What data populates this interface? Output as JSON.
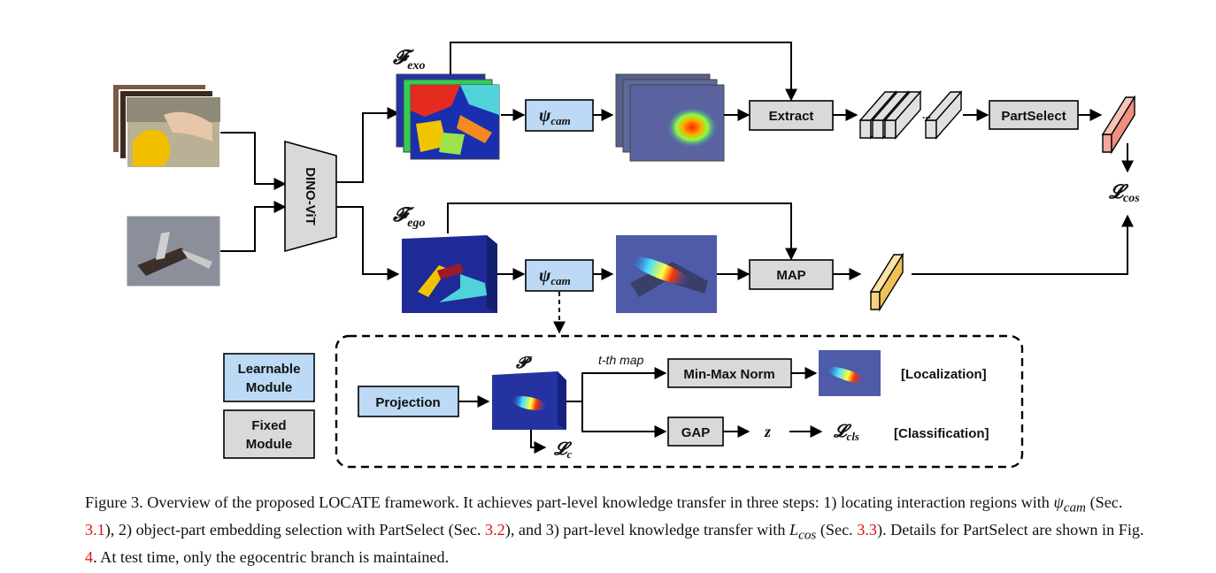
{
  "labels": {
    "dino": "DINO-ViT",
    "f_exo": "𝓕",
    "f_exo_sub": "exo",
    "f_ego": "𝓕",
    "f_ego_sub": "ego",
    "psi_top": "ψ",
    "psi_top_sub": "cam",
    "psi_bottom": "ψ",
    "psi_bottom_sub": "cam",
    "extract": "Extract",
    "partselect": "PartSelect",
    "map": "MAP",
    "dots": "...",
    "l_cos": "𝓛",
    "l_cos_sub": "cos"
  },
  "legend": {
    "learnable_line1": "Learnable",
    "learnable_line2": "Module",
    "fixed_line1": "Fixed",
    "fixed_line2": "Module"
  },
  "detail": {
    "projection": "Projection",
    "p_label": "𝓟",
    "tth_map": "t-th map",
    "minmax": "Min-Max Norm",
    "gap": "GAP",
    "z": "z",
    "l_c": "𝓛",
    "l_c_sub": "c",
    "l_cls": "𝓛",
    "l_cls_sub": "cls",
    "localization": "[Localization]",
    "classification": "[Classification]"
  },
  "caption": {
    "p1": "Figure 3. Overview of the proposed LOCATE framework. It achieves part-level knowledge transfer in three steps: 1) locating interaction regions with ",
    "psi": "ψ",
    "psi_sub": "cam",
    "p2": " (Sec. ",
    "ref1": "3.1",
    "p3": "), 2) object-part embedding selection with PartSelect (Sec. ",
    "ref2": "3.2",
    "p4": "), and 3) part-level knowledge transfer with ",
    "lcos": "L",
    "lcos_sub": "cos",
    "p5": " (Sec. ",
    "ref3": "3.3",
    "p6": "). Details for PartSelect are shown in Fig. ",
    "ref4": "4",
    "p7": ". At test time, only the egocentric branch is maintained."
  },
  "colors": {
    "learnable": "#bcd9f5",
    "fixed": "#d9d9d9",
    "ref": "#d11111",
    "ego_token": "#f7d27a",
    "exo_token": "#f4a79a",
    "token_gray": "#e0e0e0"
  }
}
